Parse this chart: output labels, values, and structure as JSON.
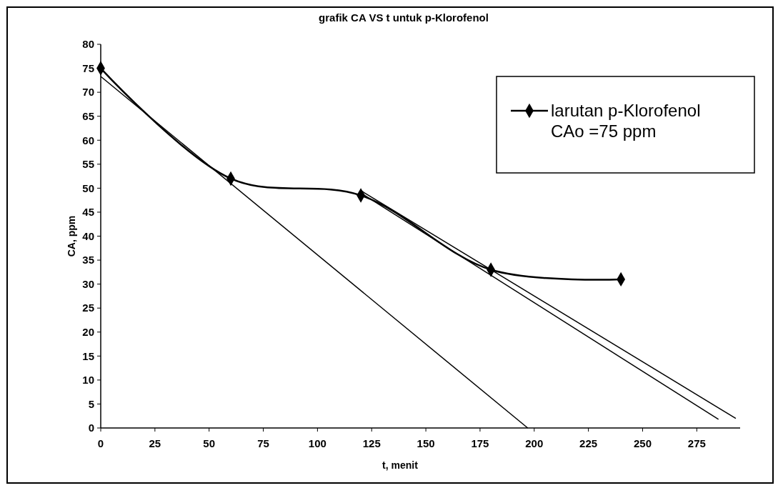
{
  "chart_data": {
    "type": "line",
    "title": "grafik CA VS t untuk p-Klorofenol",
    "xlabel": "t, menit",
    "ylabel": "CA, ppm",
    "xlim": [
      0,
      295
    ],
    "xticks": [
      0,
      25,
      50,
      75,
      100,
      125,
      150,
      175,
      200,
      225,
      250,
      275
    ],
    "ylim": [
      0,
      80
    ],
    "yticks": [
      0,
      5,
      10,
      15,
      20,
      25,
      30,
      35,
      40,
      45,
      50,
      55,
      60,
      65,
      70,
      75,
      80
    ],
    "grid": false,
    "legend": "top right",
    "series": [
      {
        "name": "larutan p-Klorofenol\nCAo =75 ppm",
        "color": "#000000",
        "marker": "diamond",
        "x": [
          0,
          60,
          120,
          180,
          240
        ],
        "values": [
          75,
          52,
          48.5,
          33,
          31
        ]
      },
      {
        "color": "#000000",
        "marker": "none",
        "x": [
          0,
          197
        ],
        "values": [
          73.3,
          0
        ]
      },
      {
        "color": "#000000",
        "marker": "none",
        "x": [
          120,
          285
        ],
        "values": [
          49,
          1.8
        ]
      },
      {
        "color": "#000000",
        "marker": "none",
        "x": [
          120,
          293
        ],
        "values": [
          49.5,
          2
        ]
      }
    ]
  }
}
